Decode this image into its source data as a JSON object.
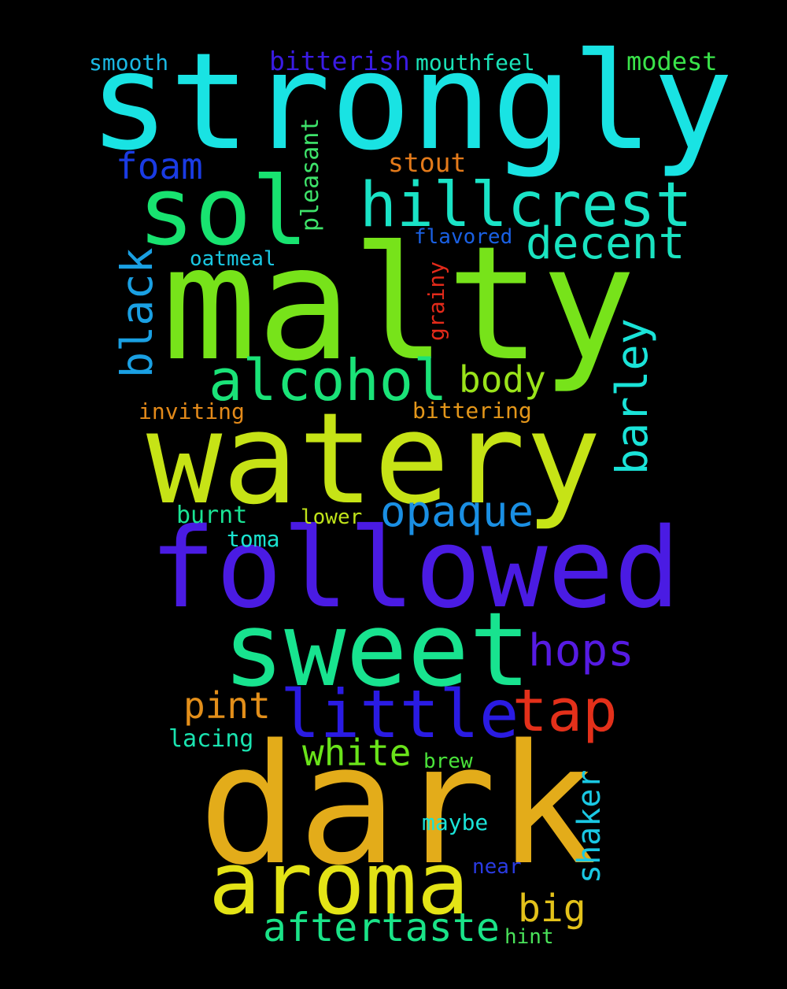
{
  "background": "#000000",
  "words": [
    {
      "text": "strongly",
      "color": "#19e3e3"
    },
    {
      "text": "malty",
      "color": "#77e31a"
    },
    {
      "text": "watery",
      "color": "#c6e316"
    },
    {
      "text": "followed",
      "color": "#4a1be3"
    },
    {
      "text": "dark",
      "color": "#e3ac1a"
    },
    {
      "text": "sweet",
      "color": "#18e38f"
    },
    {
      "text": "sol",
      "color": "#18e370"
    },
    {
      "text": "aroma",
      "color": "#e3e316"
    },
    {
      "text": "hillcrest",
      "color": "#1ae3c6"
    },
    {
      "text": "alcohol",
      "color": "#1ae378"
    },
    {
      "text": "little",
      "color": "#2a1be3"
    },
    {
      "text": "tap",
      "color": "#e3301a"
    },
    {
      "text": "decent",
      "color": "#1ae3c0"
    },
    {
      "text": "opaque",
      "color": "#1a8fe3"
    },
    {
      "text": "barley",
      "color": "#1ae3d8"
    },
    {
      "text": "black",
      "color": "#1aa0e3"
    },
    {
      "text": "hops",
      "color": "#561be3"
    },
    {
      "text": "aftertaste",
      "color": "#1ae388"
    },
    {
      "text": "foam",
      "color": "#1a3be3"
    },
    {
      "text": "body",
      "color": "#9ae31a"
    },
    {
      "text": "pint",
      "color": "#e38f1a"
    },
    {
      "text": "white",
      "color": "#6ae31a"
    },
    {
      "text": "big",
      "color": "#e3c21a"
    },
    {
      "text": "shaker",
      "color": "#1ac8e3"
    },
    {
      "text": "stout",
      "color": "#e37a1a"
    },
    {
      "text": "pleasant",
      "color": "#3ee36a"
    },
    {
      "text": "bitterish",
      "color": "#3a1be3"
    },
    {
      "text": "modest",
      "color": "#3ae34a"
    },
    {
      "text": "mouthfeel",
      "color": "#1ae3b8"
    },
    {
      "text": "smooth",
      "color": "#1ab8e3"
    },
    {
      "text": "flavored",
      "color": "#1a60e3"
    },
    {
      "text": "oatmeal",
      "color": "#1ac8e3"
    },
    {
      "text": "grainy",
      "color": "#e32a1a"
    },
    {
      "text": "inviting",
      "color": "#e38a1a"
    },
    {
      "text": "bittering",
      "color": "#e3961a"
    },
    {
      "text": "burnt",
      "color": "#1ae394"
    },
    {
      "text": "lower",
      "color": "#c0e31a"
    },
    {
      "text": "toma",
      "color": "#1ae3d0"
    },
    {
      "text": "lacing",
      "color": "#1ae3b0"
    },
    {
      "text": "brew",
      "color": "#4ae33a"
    },
    {
      "text": "maybe",
      "color": "#1ae3d8"
    },
    {
      "text": "near",
      "color": "#2a3be3"
    },
    {
      "text": "hint",
      "color": "#4ae35a"
    }
  ]
}
